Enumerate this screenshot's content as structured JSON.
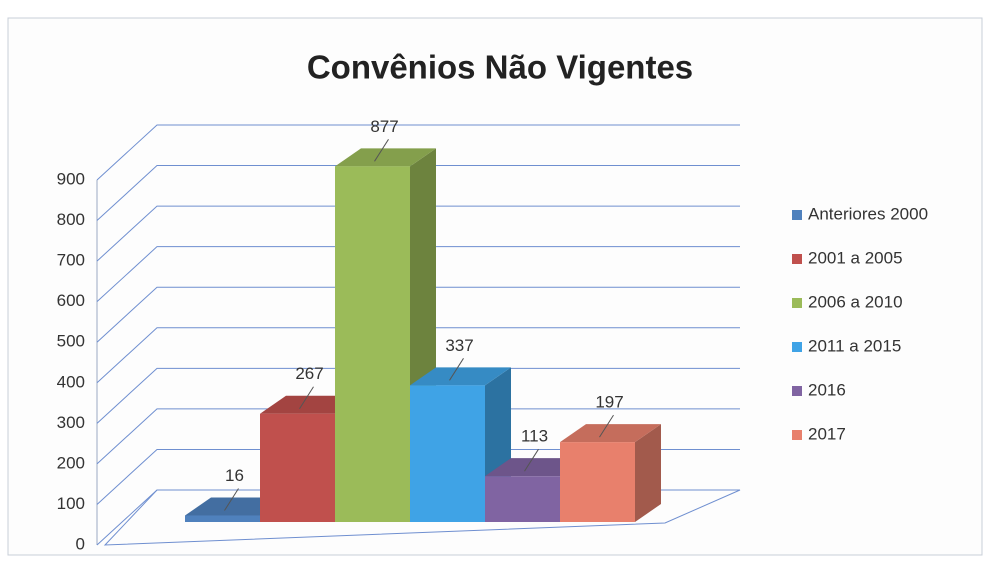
{
  "chart_data": {
    "type": "bar",
    "title": "Convênios Não Vigentes",
    "series": [
      {
        "name": "Anteriores 2000",
        "color": "#4f81bd",
        "values": [
          16
        ]
      },
      {
        "name": "2001 a 2005",
        "color": "#c0504d",
        "values": [
          267
        ]
      },
      {
        "name": "2006 a 2010",
        "color": "#9bbb59",
        "values": [
          877
        ]
      },
      {
        "name": "2011 a 2015",
        "color": "#3fa3e6",
        "values": [
          337
        ]
      },
      {
        "name": "2016",
        "color": "#8064a2",
        "values": [
          113
        ]
      },
      {
        "name": "2017",
        "color": "#e8806c",
        "values": [
          197
        ]
      }
    ],
    "ylim": [
      0,
      900
    ],
    "yticks": [
      0,
      100,
      200,
      300,
      400,
      500,
      600,
      700,
      800,
      900
    ],
    "grid": true,
    "legend": "right"
  }
}
